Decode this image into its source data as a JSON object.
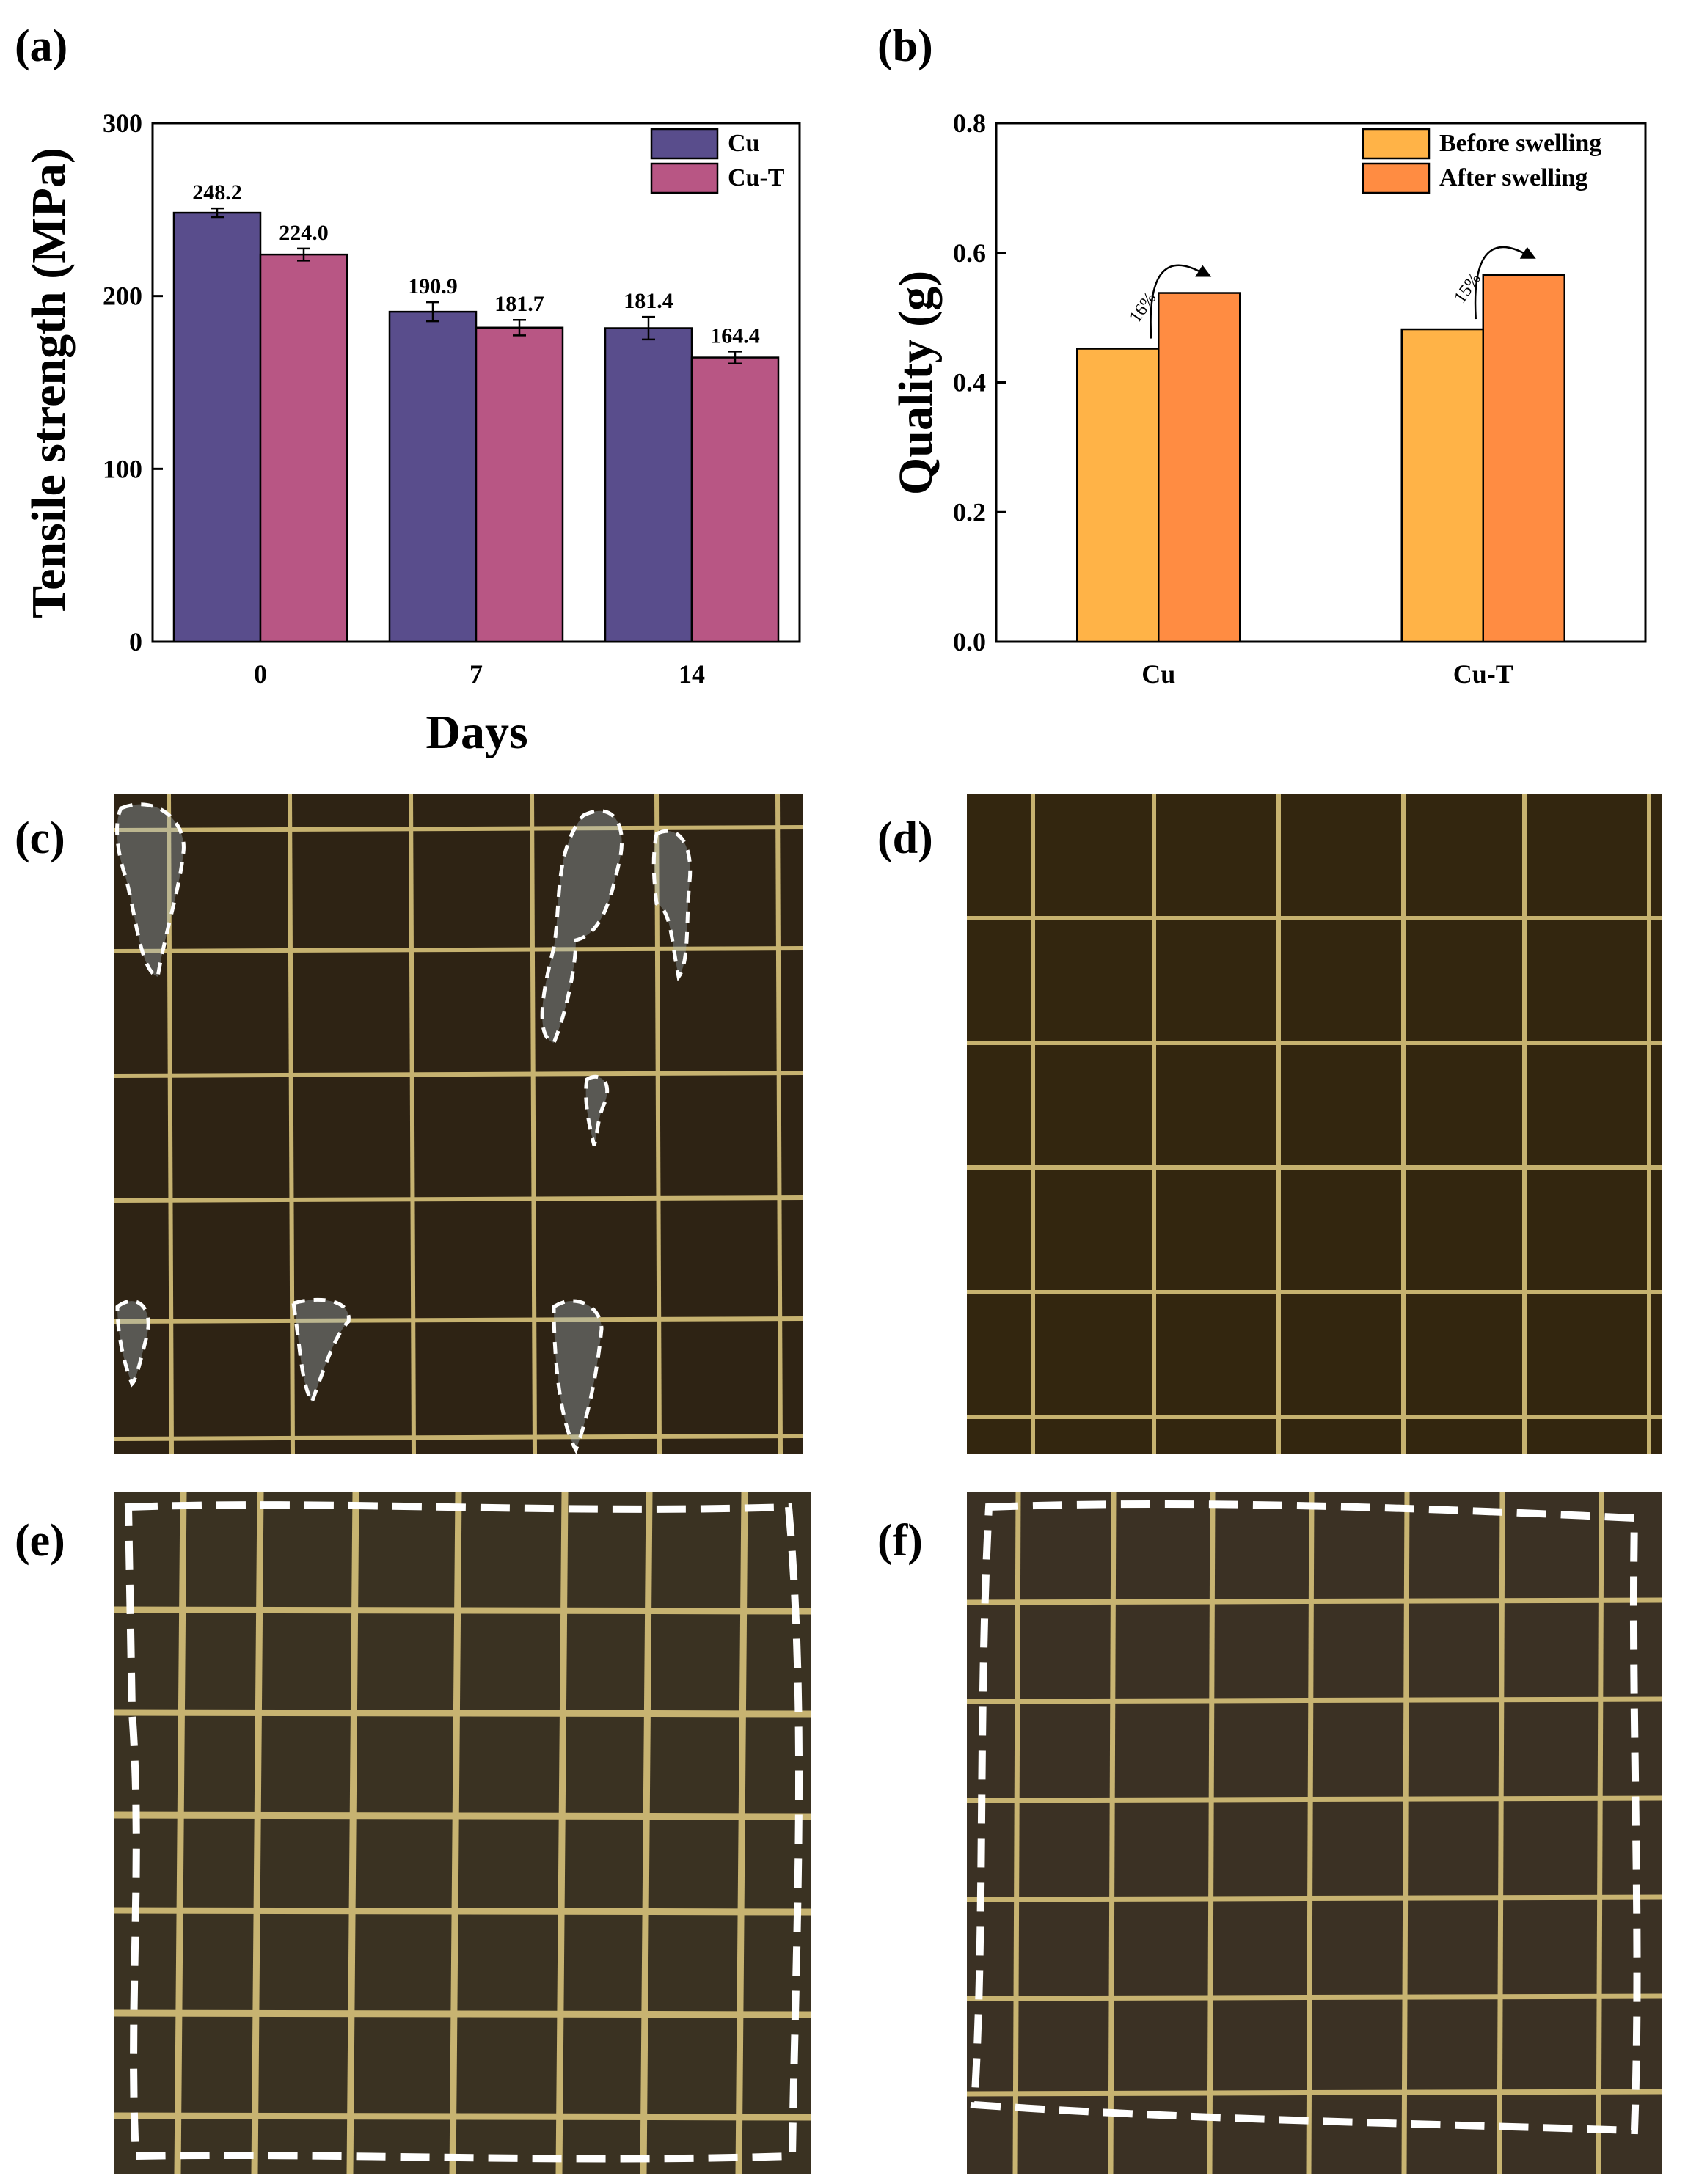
{
  "panels": {
    "a": "(a)",
    "b": "(b)",
    "c": "(c)",
    "d": "(d)",
    "e": "(e)",
    "f": "(f)"
  },
  "colors": {
    "cu": "#594d8c",
    "cuT": "#b85684",
    "before": "#ffb347",
    "after": "#ff8c42",
    "micro_bg": "#2e2314",
    "micro_grid": "#d7c27a"
  },
  "chart_data": [
    {
      "type": "bar",
      "ylabel": "Tensile strength (MPa)",
      "xlabel": "Days",
      "categories": [
        "0",
        "7",
        "14"
      ],
      "ylim": [
        0,
        300
      ],
      "yticks": [
        "0",
        "100",
        "200",
        "300"
      ],
      "series": [
        {
          "name": "Cu",
          "values": [
            248.2,
            190.9,
            181.4
          ],
          "errors": [
            2.5,
            5.5,
            6.5
          ],
          "labels": [
            "248.2",
            "190.9",
            "181.4"
          ]
        },
        {
          "name": "Cu-T",
          "values": [
            224.0,
            181.7,
            164.4
          ],
          "errors": [
            3.5,
            4.5,
            3.5
          ],
          "labels": [
            "224.0",
            "181.7",
            "164.4"
          ]
        }
      ],
      "legend": "top-right"
    },
    {
      "type": "bar",
      "ylabel": "Quality (g)",
      "categories": [
        "Cu",
        "Cu-T"
      ],
      "ylim": [
        0,
        0.8
      ],
      "yticks": [
        "0.0",
        "0.2",
        "0.4",
        "0.6",
        "0.8"
      ],
      "series": [
        {
          "name": "Before swelling",
          "values": [
            0.452,
            0.482
          ]
        },
        {
          "name": "After swelling",
          "values": [
            0.538,
            0.566
          ]
        }
      ],
      "annotations": [
        "16%",
        "15%"
      ],
      "legend": "top-right"
    }
  ]
}
